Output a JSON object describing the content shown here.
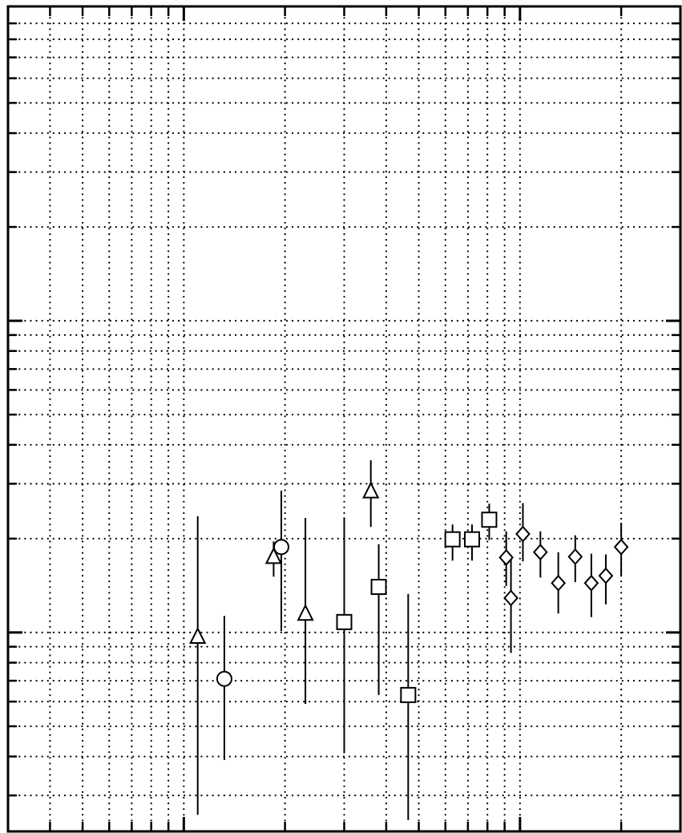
{
  "chart_data": {
    "type": "scatter",
    "title": "",
    "xlabel": "",
    "ylabel": "",
    "xscale": "log",
    "yscale": "log",
    "xlim": [
      0.3,
      30
    ],
    "ylim": [
      0.0023,
      1.02
    ],
    "grid": true,
    "grid_style": "dotted",
    "tick_labels_visible": false,
    "x_gridlines": [
      0.4,
      0.5,
      0.6,
      0.7,
      0.8,
      0.9,
      1,
      2,
      3,
      4,
      5,
      6,
      7,
      8,
      9,
      10,
      20,
      30
    ],
    "x_major_ticks": [
      1,
      10
    ],
    "y_gridlines": [
      0.003,
      0.004,
      0.005,
      0.006,
      0.007,
      0.008,
      0.009,
      0.01,
      0.02,
      0.03,
      0.04,
      0.05,
      0.06,
      0.07,
      0.08,
      0.09,
      0.1,
      0.2,
      0.3,
      0.4,
      0.5,
      0.6,
      0.7,
      0.8,
      0.9
    ],
    "y_major_ticks": [
      0.01,
      0.1,
      1
    ],
    "series": [
      {
        "marker": "triangle",
        "color": "#000000",
        "points": [
          {
            "x": 1.1,
            "y": 0.0097,
            "ylo": 0.0026,
            "yhi": 0.0236
          },
          {
            "x": 1.85,
            "y": 0.0175,
            "ylo": 0.0151,
            "yhi": 0.0196
          },
          {
            "x": 2.3,
            "y": 0.0115,
            "ylo": 0.0059,
            "yhi": 0.0233
          },
          {
            "x": 3.6,
            "y": 0.0284,
            "ylo": 0.0218,
            "yhi": 0.0357
          }
        ]
      },
      {
        "marker": "circle",
        "color": "#000000",
        "points": [
          {
            "x": 1.32,
            "y": 0.0071,
            "ylo": 0.0039,
            "yhi": 0.0113
          },
          {
            "x": 1.95,
            "y": 0.0188,
            "ylo": 0.0101,
            "yhi": 0.0285
          }
        ]
      },
      {
        "marker": "square",
        "color": "#000000",
        "points": [
          {
            "x": 3.0,
            "y": 0.0108,
            "ylo": 0.0041,
            "yhi": 0.0234
          },
          {
            "x": 3.8,
            "y": 0.014,
            "ylo": 0.0063,
            "yhi": 0.0192
          },
          {
            "x": 4.65,
            "y": 0.0063,
            "ylo": 0.0025,
            "yhi": 0.0133
          },
          {
            "x": 6.3,
            "y": 0.0199,
            "ylo": 0.017,
            "yhi": 0.0222
          },
          {
            "x": 7.2,
            "y": 0.0199,
            "ylo": 0.017,
            "yhi": 0.0222
          },
          {
            "x": 8.1,
            "y": 0.023,
            "ylo": 0.0198,
            "yhi": 0.0259
          }
        ]
      },
      {
        "marker": "diamond",
        "color": "#000000",
        "points": [
          {
            "x": 9.1,
            "y": 0.0174,
            "ylo": 0.0141,
            "yhi": 0.0211
          },
          {
            "x": 9.4,
            "y": 0.0129,
            "ylo": 0.0086,
            "yhi": 0.0175
          },
          {
            "x": 10.2,
            "y": 0.0207,
            "ylo": 0.0169,
            "yhi": 0.026
          },
          {
            "x": 11.5,
            "y": 0.0181,
            "ylo": 0.015,
            "yhi": 0.0211
          },
          {
            "x": 13.0,
            "y": 0.0144,
            "ylo": 0.0115,
            "yhi": 0.0181
          },
          {
            "x": 14.6,
            "y": 0.0175,
            "ylo": 0.0145,
            "yhi": 0.0205
          },
          {
            "x": 16.3,
            "y": 0.0144,
            "ylo": 0.0112,
            "yhi": 0.0179
          },
          {
            "x": 18.0,
            "y": 0.0152,
            "ylo": 0.0123,
            "yhi": 0.0178
          },
          {
            "x": 20.0,
            "y": 0.0188,
            "ylo": 0.0152,
            "yhi": 0.0225
          }
        ]
      }
    ]
  }
}
